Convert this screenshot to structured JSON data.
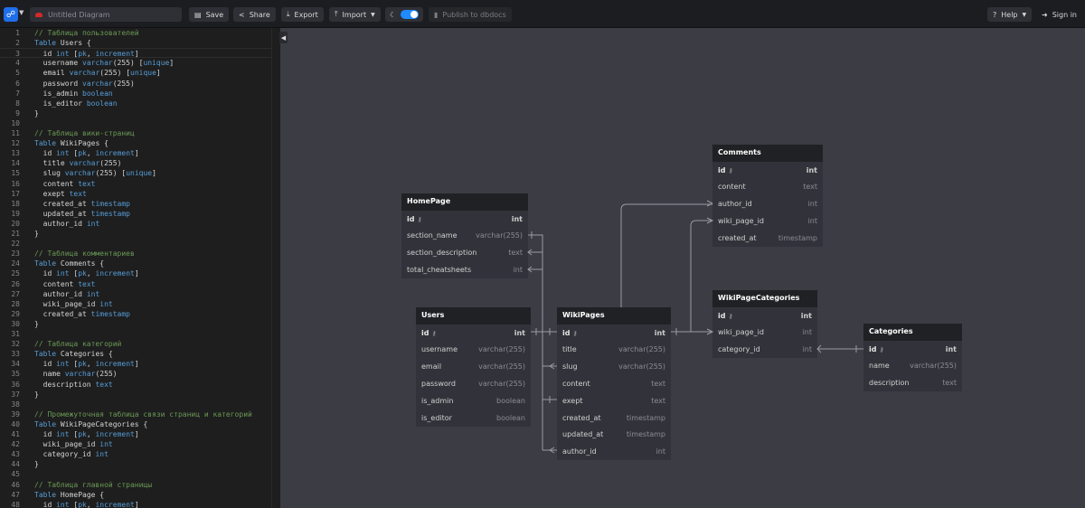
{
  "topbar": {
    "title_placeholder": "Untitled Diagram",
    "save": "Save",
    "share": "Share",
    "export": "Export",
    "import": "Import",
    "publish": "Publish to dbdocs",
    "help": "Help",
    "sign_in": "Sign in",
    "dark_mode": true
  },
  "editor": {
    "active_line": 3,
    "lines": [
      "// Таблица пользователей",
      "Table Users {",
      "  id int [pk, increment]",
      "  username varchar(255) [unique]",
      "  email varchar(255) [unique]",
      "  password varchar(255)",
      "  is_admin boolean",
      "  is_editor boolean",
      "}",
      "",
      "// Таблица вики-страниц",
      "Table WikiPages {",
      "  id int [pk, increment]",
      "  title varchar(255)",
      "  slug varchar(255) [unique]",
      "  content text",
      "  exept text",
      "  created_at timestamp",
      "  updated_at timestamp",
      "  author_id int",
      "}",
      "",
      "// Таблица комментариев",
      "Table Comments {",
      "  id int [pk, increment]",
      "  content text",
      "  author_id int",
      "  wiki_page_id int",
      "  created_at timestamp",
      "}",
      "",
      "// Таблица категорий",
      "Table Categories {",
      "  id int [pk, increment]",
      "  name varchar(255)",
      "  description text",
      "}",
      "",
      "// Промежуточная таблица связи страниц и категорий",
      "Table WikiPageCategories {",
      "  id int [pk, increment]",
      "  wiki_page_id int",
      "  category_id int",
      "}",
      "",
      "// Таблица главной страницы",
      "Table HomePage {",
      "  id int [pk, increment]"
    ]
  },
  "tables": [
    {
      "name": "HomePage",
      "fields": [
        {
          "name": "id",
          "type": "int",
          "pk": true
        },
        {
          "name": "section_name",
          "type": "varchar(255)"
        },
        {
          "name": "section_description",
          "type": "text"
        },
        {
          "name": "total_cheatsheets",
          "type": "int"
        }
      ]
    },
    {
      "name": "Users",
      "fields": [
        {
          "name": "id",
          "type": "int",
          "pk": true
        },
        {
          "name": "username",
          "type": "varchar(255)"
        },
        {
          "name": "email",
          "type": "varchar(255)"
        },
        {
          "name": "password",
          "type": "varchar(255)"
        },
        {
          "name": "is_admin",
          "type": "boolean"
        },
        {
          "name": "is_editor",
          "type": "boolean"
        }
      ]
    },
    {
      "name": "WikiPages",
      "fields": [
        {
          "name": "id",
          "type": "int",
          "pk": true
        },
        {
          "name": "title",
          "type": "varchar(255)"
        },
        {
          "name": "slug",
          "type": "varchar(255)"
        },
        {
          "name": "content",
          "type": "text"
        },
        {
          "name": "exept",
          "type": "text"
        },
        {
          "name": "created_at",
          "type": "timestamp"
        },
        {
          "name": "updated_at",
          "type": "timestamp"
        },
        {
          "name": "author_id",
          "type": "int"
        }
      ]
    },
    {
      "name": "Comments",
      "fields": [
        {
          "name": "id",
          "type": "int",
          "pk": true
        },
        {
          "name": "content",
          "type": "text"
        },
        {
          "name": "author_id",
          "type": "int"
        },
        {
          "name": "wiki_page_id",
          "type": "int"
        },
        {
          "name": "created_at",
          "type": "timestamp"
        }
      ]
    },
    {
      "name": "WikiPageCategories",
      "fields": [
        {
          "name": "id",
          "type": "int",
          "pk": true
        },
        {
          "name": "wiki_page_id",
          "type": "int"
        },
        {
          "name": "category_id",
          "type": "int"
        }
      ]
    },
    {
      "name": "Categories",
      "fields": [
        {
          "name": "id",
          "type": "int",
          "pk": true
        },
        {
          "name": "name",
          "type": "varchar(255)"
        },
        {
          "name": "description",
          "type": "text"
        }
      ]
    }
  ]
}
